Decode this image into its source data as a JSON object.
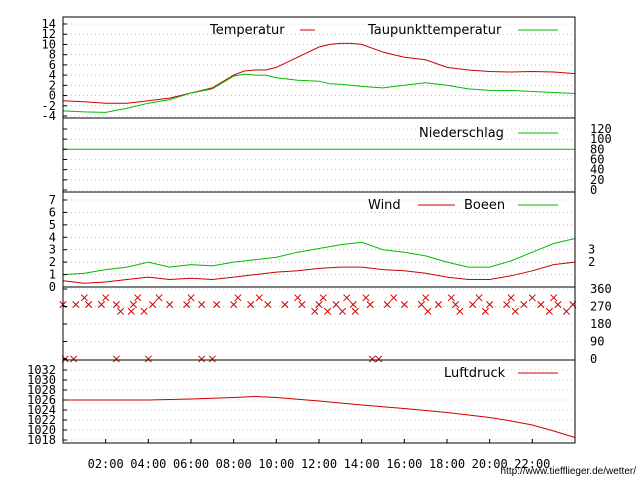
{
  "source_url": "http://www.tiefflieger.de/wetter/",
  "x_axis": {
    "hour_range": [
      0,
      24
    ],
    "tick_hours": [
      2,
      4,
      6,
      8,
      10,
      12,
      14,
      16,
      18,
      20,
      22
    ],
    "tick_labels": [
      "02:00",
      "04:00",
      "06:00",
      "08:00",
      "10:00",
      "12:00",
      "14:00",
      "16:00",
      "18:00",
      "20:00",
      "22:00"
    ]
  },
  "colors": {
    "red": "#cc0000",
    "green": "#00bb00",
    "axis": "#000000",
    "grid": "#999999"
  },
  "chart_data": [
    {
      "type": "line",
      "panel": "temperature",
      "ylim": [
        -4,
        14
      ],
      "yticks": [
        -4,
        -2,
        0,
        2,
        4,
        6,
        8,
        10,
        12,
        14
      ],
      "x": [
        0,
        1,
        2,
        3,
        4,
        5,
        6,
        7,
        8,
        8.5,
        9,
        9.5,
        10,
        11,
        12,
        12.5,
        13,
        13.5,
        14,
        15,
        16,
        17,
        18,
        19,
        20,
        21,
        22,
        23,
        24
      ],
      "series": [
        {
          "name": "Temperatur",
          "color": "#cc0000",
          "values": [
            -1,
            -1.2,
            -1.5,
            -1.5,
            -1,
            -0.5,
            0.5,
            1.5,
            4,
            4.8,
            5,
            5,
            5.5,
            7.5,
            9.5,
            10,
            10.2,
            10.2,
            10,
            8.5,
            7.5,
            7,
            5.5,
            5,
            4.7,
            4.6,
            4.7,
            4.6,
            4.3
          ]
        },
        {
          "name": "Taupunkttemperatur",
          "color": "#00bb00",
          "values": [
            -3,
            -3.2,
            -3.3,
            -2.5,
            -1.5,
            -0.8,
            0.5,
            1.3,
            3.8,
            4.2,
            4,
            4,
            3.5,
            3,
            2.8,
            2.3,
            2.2,
            2,
            1.8,
            1.5,
            2,
            2.5,
            2,
            1.3,
            1,
            1,
            0.8,
            0.6,
            0.4
          ]
        }
      ]
    },
    {
      "type": "line",
      "panel": "precipitation",
      "ylim": [
        0,
        120
      ],
      "yticks": [
        0,
        20,
        40,
        60,
        80,
        100,
        120
      ],
      "x": [
        0,
        24
      ],
      "series": [
        {
          "name": "Niederschlag",
          "color": "#00bb00",
          "values": [
            80,
            80
          ]
        }
      ]
    },
    {
      "type": "line",
      "panel": "wind",
      "ylim": [
        0,
        7
      ],
      "yticks": [
        0,
        1,
        2,
        3,
        4,
        5,
        6,
        7
      ],
      "right_tick_labels": [
        "2",
        "3"
      ],
      "x": [
        0,
        1,
        2,
        3,
        4,
        5,
        6,
        7,
        8,
        9,
        10,
        11,
        12,
        13,
        14,
        15,
        16,
        17,
        18,
        19,
        20,
        21,
        22,
        23,
        24
      ],
      "series": [
        {
          "name": "Wind",
          "color": "#cc0000",
          "values": [
            0.5,
            0.3,
            0.4,
            0.6,
            0.8,
            0.6,
            0.7,
            0.6,
            0.8,
            1.0,
            1.2,
            1.3,
            1.5,
            1.6,
            1.6,
            1.4,
            1.3,
            1.1,
            0.8,
            0.6,
            0.6,
            0.9,
            1.3,
            1.8,
            2.0
          ]
        },
        {
          "name": "Boeen",
          "color": "#00bb00",
          "values": [
            1.0,
            1.1,
            1.4,
            1.6,
            2.0,
            1.6,
            1.8,
            1.7,
            2.0,
            2.2,
            2.4,
            2.8,
            3.1,
            3.4,
            3.6,
            3.0,
            2.8,
            2.5,
            2.0,
            1.6,
            1.6,
            2.1,
            2.8,
            3.5,
            3.9
          ]
        }
      ]
    },
    {
      "type": "scatter",
      "panel": "wind-direction",
      "ylim": [
        0,
        360
      ],
      "yticks": [
        0,
        90,
        180,
        270,
        360
      ],
      "marker": "x",
      "series": [
        {
          "color": "#cc0000",
          "x": [
            0.1,
            0.5,
            2.5,
            4,
            6.5,
            7,
            14.5,
            14.8,
            0,
            0.6,
            1.2,
            1.8,
            2.5,
            3.3,
            4.2,
            5,
            5.8,
            6.5,
            7.2,
            8,
            8.8,
            9.6,
            10.4,
            11.2,
            12,
            12.8,
            13.6,
            14.4,
            15.2,
            16,
            16.8,
            17.6,
            18.4,
            19.2,
            20,
            20.8,
            21.6,
            22.4,
            23.2,
            23.9,
            2.7,
            3.2,
            3.8,
            11.8,
            12.4,
            13.1,
            13.7,
            17.1,
            18.6,
            19.8,
            21.2,
            22.8,
            23.6,
            1,
            2,
            3.5,
            4.5,
            6,
            8.2,
            9.2,
            11,
            12.2,
            13.3,
            14.2,
            15.5,
            17,
            18.2,
            19.5,
            21,
            22,
            23
          ],
          "y": [
            0,
            0,
            0,
            0,
            0,
            0,
            0,
            0,
            280,
            280,
            280,
            280,
            280,
            280,
            280,
            280,
            280,
            280,
            280,
            280,
            280,
            280,
            280,
            280,
            280,
            280,
            280,
            280,
            280,
            280,
            280,
            280,
            280,
            280,
            280,
            280,
            280,
            280,
            280,
            280,
            245,
            245,
            245,
            245,
            245,
            245,
            245,
            245,
            245,
            245,
            245,
            245,
            245,
            315,
            315,
            315,
            315,
            315,
            315,
            315,
            315,
            315,
            315,
            315,
            315,
            315,
            315,
            315,
            315,
            315,
            315
          ]
        }
      ]
    },
    {
      "type": "line",
      "panel": "pressure",
      "ylim": [
        1018,
        1032
      ],
      "yticks": [
        1018,
        1020,
        1022,
        1024,
        1026,
        1028,
        1030,
        1032
      ],
      "x": [
        0,
        2,
        4,
        6,
        8,
        9,
        10,
        12,
        14,
        16,
        18,
        20,
        21,
        22,
        23,
        24
      ],
      "series": [
        {
          "name": "Luftdruck",
          "color": "#cc0000",
          "values": [
            1026,
            1026,
            1026,
            1026.2,
            1026.5,
            1026.7,
            1026.5,
            1025.8,
            1025,
            1024.3,
            1023.5,
            1022.5,
            1021.8,
            1021,
            1019.8,
            1018.5
          ]
        }
      ]
    }
  ]
}
